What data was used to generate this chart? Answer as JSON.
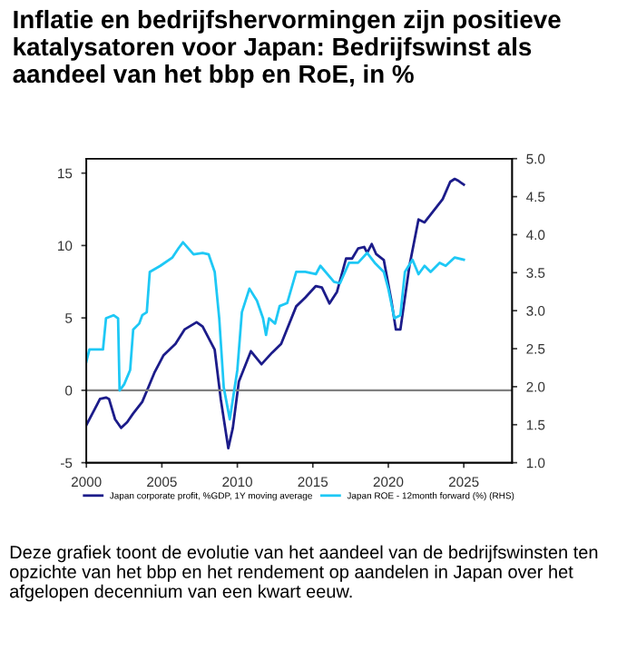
{
  "chart_data": {
    "type": "line",
    "title": "Inflatie en bedrijfshervormingen zijn positieve katalysatoren voor Japan: Bedrijfswinst als aandeel van het bbp en RoE, in %",
    "xlim": [
      2000,
      2028.2
    ],
    "xticks": [
      2000,
      2005,
      2010,
      2015,
      2020,
      2025
    ],
    "ylim": [
      -5,
      16
    ],
    "yticks": [
      -5,
      0,
      5,
      10,
      15
    ],
    "y2lim": [
      1,
      5
    ],
    "y2ticks": [
      {
        "value": 1,
        "label": "1.0"
      },
      {
        "value": 1.5,
        "label": "1.5"
      },
      {
        "value": 2,
        "label": "2.0"
      },
      {
        "value": 2.5,
        "label": "2.5"
      },
      {
        "value": 3,
        "label": "3.0"
      },
      {
        "value": 3.5,
        "label": "3.5"
      },
      {
        "value": 4,
        "label": "4.0"
      },
      {
        "value": 4.5,
        "label": "4.5"
      },
      {
        "value": 5,
        "label": "5.0"
      }
    ],
    "ref_lines": [
      {
        "axis": "y",
        "value": 0,
        "color": "#808080"
      }
    ],
    "grid": false,
    "legend": "bottom",
    "marker": "none",
    "line_style": "solid",
    "series": [
      {
        "name": "Japan corporate profit, %GDP, 1Y moving average",
        "color": "#1c1c8a",
        "x": [
          2000,
          2000.7,
          2000.9,
          2001.3,
          2001.5,
          2001.9,
          2002.3,
          2002.7,
          2003.1,
          2003.7,
          2004.1,
          2004.5,
          2005.1,
          2005.9,
          2006.5,
          2007.3,
          2007.7,
          2008.1,
          2008.5,
          2008.9,
          2009.4,
          2009.7,
          2010.1,
          2010.9,
          2011.6,
          2012.3,
          2012.9,
          2013.9,
          2014.5,
          2015.2,
          2015.6,
          2016.1,
          2016.6,
          2017.2,
          2017.6,
          2018.0,
          2018.4,
          2018.6,
          2018.9,
          2019.2,
          2019.7,
          2020.2,
          2020.5,
          2020.8,
          2021.4,
          2022.0,
          2022.4,
          2023.0,
          2023.6,
          2024.1,
          2024.4,
          2024.6,
          2025.0
        ],
        "values": [
          -2.4,
          -1.0,
          -0.6,
          -0.5,
          -0.6,
          -2.0,
          -2.6,
          -2.2,
          -1.6,
          -0.8,
          0.2,
          1.2,
          2.4,
          3.2,
          4.2,
          4.7,
          4.4,
          3.6,
          2.8,
          -0.6,
          -4.0,
          -2.6,
          0.6,
          2.7,
          1.8,
          2.6,
          3.2,
          5.8,
          6.4,
          7.2,
          7.1,
          6.0,
          6.8,
          9.1,
          9.1,
          9.8,
          9.9,
          9.5,
          10.1,
          9.4,
          9.0,
          6.2,
          4.2,
          4.2,
          8.6,
          11.8,
          11.6,
          12.4,
          13.2,
          14.4,
          14.6,
          14.5,
          14.2
        ]
      },
      {
        "name": "Japan ROE - 12month forward (%) (RHS)",
        "color": "#1ec8f5",
        "axis": "y2",
        "x": [
          2000,
          2000.2,
          2001.1,
          2001.3,
          2001.8,
          2002.1,
          2002.2,
          2002.5,
          2002.9,
          2003.1,
          2003.5,
          2003.7,
          2004.0,
          2004.2,
          2004.9,
          2005.7,
          2006.1,
          2006.4,
          2007.1,
          2007.7,
          2008.1,
          2008.5,
          2008.8,
          2009.1,
          2009.5,
          2010.0,
          2010.3,
          2010.8,
          2011.3,
          2011.7,
          2011.9,
          2012.1,
          2012.5,
          2012.8,
          2013.3,
          2013.9,
          2014.5,
          2015.2,
          2015.5,
          2016.4,
          2016.8,
          2017.4,
          2018.0,
          2018.6,
          2019.1,
          2019.7,
          2020.0,
          2020.4,
          2020.8,
          2021.1,
          2021.6,
          2022.0,
          2022.4,
          2022.8,
          2023.4,
          2023.8,
          2024.4,
          2025.0
        ],
        "values": [
          2.33,
          2.49,
          2.49,
          2.9,
          2.94,
          2.9,
          1.95,
          2.03,
          2.22,
          2.75,
          2.83,
          2.94,
          2.98,
          3.51,
          3.59,
          3.7,
          3.82,
          3.9,
          3.74,
          3.76,
          3.74,
          3.51,
          2.9,
          1.99,
          1.57,
          2.22,
          2.98,
          3.29,
          3.13,
          2.9,
          2.68,
          2.9,
          2.83,
          3.06,
          3.1,
          3.51,
          3.51,
          3.48,
          3.59,
          3.38,
          3.36,
          3.63,
          3.63,
          3.76,
          3.63,
          3.51,
          3.29,
          2.9,
          2.94,
          3.51,
          3.67,
          3.48,
          3.59,
          3.51,
          3.63,
          3.59,
          3.7,
          3.67
        ]
      }
    ],
    "annotations": [
      "Deze grafiek toont de evolutie van het aandeel van de bedrijfswinsten ten opzichte van het bbp en het rendement op aandelen in Japan over het afgelopen decennium van een kwart eeuw."
    ]
  }
}
